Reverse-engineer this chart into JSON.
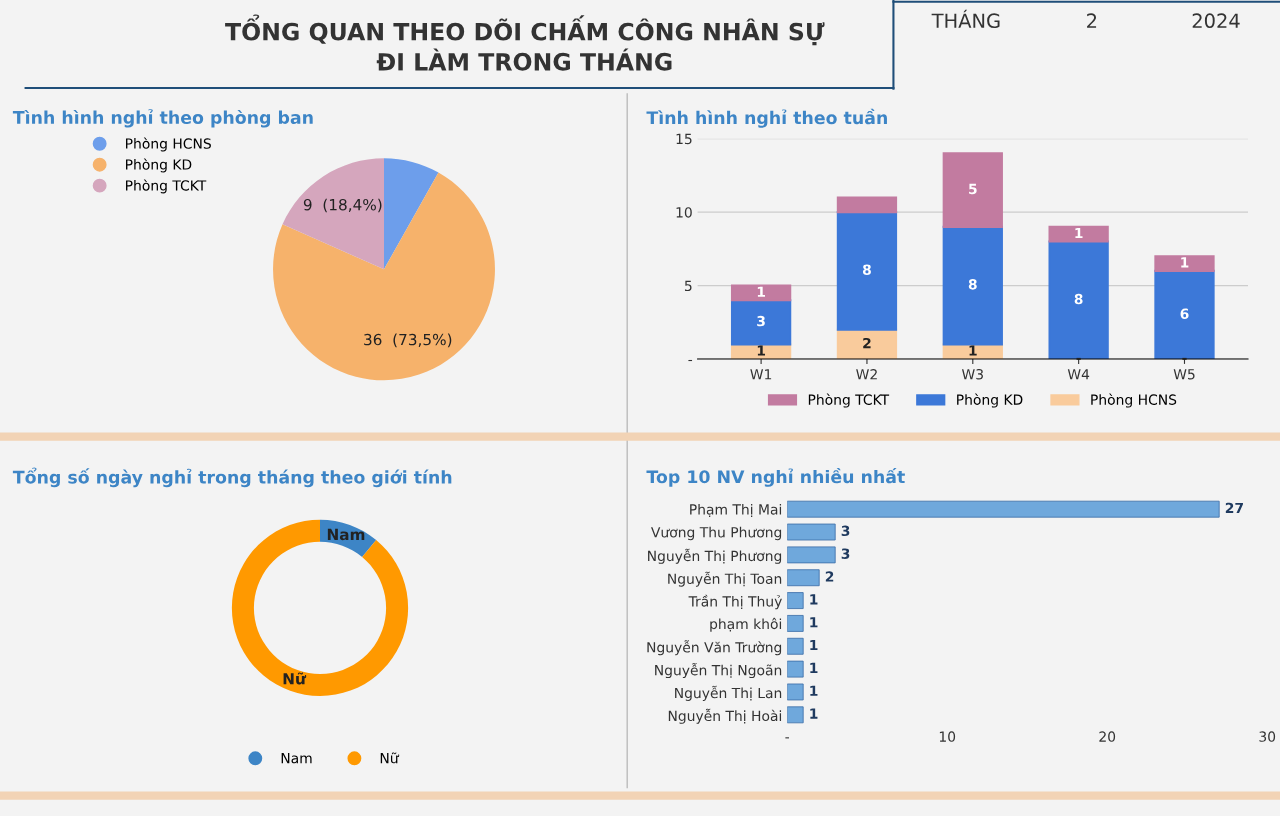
{
  "chart_data": [
    {
      "type": "other",
      "title": "TỔNG QUAN THEO DÕI CHẤM CÔNG NHÂN SỰ\nĐI LÀM TRONG THÁNG",
      "annotations": [
        "THÁNG",
        "2",
        "2024"
      ]
    },
    {
      "type": "pie",
      "title": "Tình hình nghỉ theo phòng ban",
      "categories": [
        "Phòng HCNS",
        "Phòng KD",
        "Phòng TCKT"
      ],
      "values": [
        4,
        36,
        9
      ],
      "colors": [
        "#6d9eeb",
        "#f6b26b",
        "#d5a6bd"
      ],
      "value_labels": [
        null,
        "36  (73,5%)",
        "9  (18,4%)"
      ],
      "legend": "top left"
    },
    {
      "type": "bar",
      "title": "Tình hình nghỉ theo tuần",
      "categories": [
        "W1",
        "W2",
        "W3",
        "W4",
        "W5"
      ],
      "stacked": true,
      "legend": "bottom",
      "grid": "y",
      "ylim": [
        0,
        15
      ],
      "yticks": [
        {
          "value": 0,
          "label": "-"
        },
        5,
        10,
        15
      ],
      "series": [
        {
          "name": "Phòng HCNS",
          "color": "#f9cb9c",
          "values": [
            1,
            2,
            1,
            0,
            0
          ],
          "value_labels": [
            "1",
            "2",
            "1",
            "-",
            "-"
          ]
        },
        {
          "name": "Phòng KD",
          "color": "#3c78d8",
          "values": [
            3,
            8,
            8,
            8,
            6
          ],
          "value_labels": [
            "3",
            "8",
            "8",
            "8",
            "6"
          ]
        },
        {
          "name": "Phòng TCKT",
          "color": "#c27ba0",
          "values": [
            1,
            1,
            5,
            1,
            1
          ],
          "value_labels": [
            "1",
            null,
            "5",
            "1",
            "1"
          ]
        }
      ]
    },
    {
      "type": "donut",
      "title": "Tổng số ngày nghỉ trong tháng theo giới tính",
      "categories": [
        "Nam",
        "Nữ"
      ],
      "values": [
        11,
        89
      ],
      "colors": [
        "#3d85c6",
        "#ff9900"
      ],
      "value_labels": [
        "Nam",
        "Nữ"
      ],
      "legend": "bottom"
    },
    {
      "type": "bar",
      "orientation": "horizontal",
      "title": "Top 10 NV nghỉ nhiều nhất",
      "categories": [
        "Phạm Thị Mai",
        "Vương Thu Phương",
        "Nguyễn Thị Phương",
        "Nguyễn Thị Toan",
        "Trần Thị Thuỷ",
        "phạm khôi",
        "Nguyễn Văn Trường",
        "Nguyễn Thị Ngoãn",
        "Nguyễn Thị Lan",
        "Nguyễn Thị Hoài"
      ],
      "values": [
        27,
        3,
        3,
        2,
        1,
        1,
        1,
        1,
        1,
        1
      ],
      "color": "#6fa8dc",
      "data_labels": true,
      "xlim": [
        0,
        30
      ],
      "xticks": [
        {
          "value": 0,
          "label": "-"
        },
        10,
        20,
        30
      ]
    }
  ]
}
